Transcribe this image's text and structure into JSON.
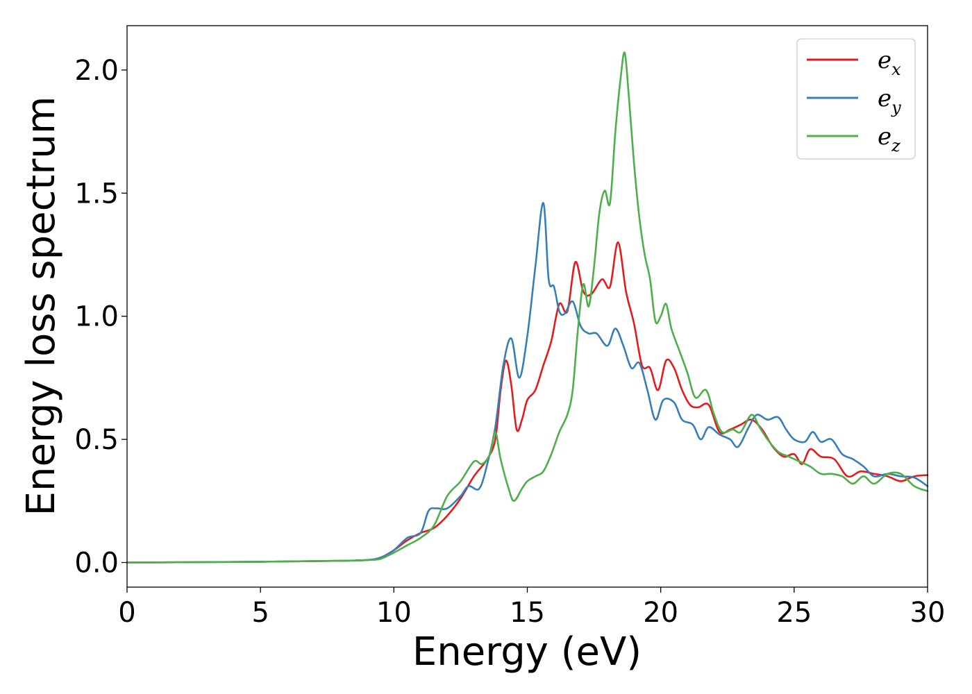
{
  "chart_data": {
    "type": "line",
    "xlabel": "Energy (eV)",
    "ylabel": "Energy loss spectrum",
    "xlim": [
      0,
      30
    ],
    "ylim": [
      -0.1,
      2.18
    ],
    "xticks": [
      0,
      5,
      10,
      15,
      20,
      25,
      30
    ],
    "xtick_labels": [
      "0",
      "5",
      "10",
      "15",
      "20",
      "25",
      "30"
    ],
    "yticks": [
      0.0,
      0.5,
      1.0,
      1.5,
      2.0
    ],
    "ytick_labels": [
      "0.0",
      "0.5",
      "1.0",
      "1.5",
      "2.0"
    ],
    "grid": false,
    "legend_position": "top-right",
    "series": [
      {
        "name": "e_x",
        "label_main": "e",
        "label_sub": "x",
        "color": "#e41a1c",
        "points": [
          [
            0,
            0.0
          ],
          [
            5,
            0.003
          ],
          [
            8,
            0.007
          ],
          [
            9,
            0.01
          ],
          [
            9.5,
            0.02
          ],
          [
            10,
            0.05
          ],
          [
            10.5,
            0.09
          ],
          [
            11,
            0.12
          ],
          [
            11.5,
            0.14
          ],
          [
            12,
            0.19
          ],
          [
            12.5,
            0.26
          ],
          [
            13,
            0.35
          ],
          [
            13.5,
            0.42
          ],
          [
            13.8,
            0.5
          ],
          [
            14,
            0.7
          ],
          [
            14.2,
            0.82
          ],
          [
            14.4,
            0.72
          ],
          [
            14.6,
            0.54
          ],
          [
            14.8,
            0.58
          ],
          [
            15,
            0.66
          ],
          [
            15.3,
            0.7
          ],
          [
            15.6,
            0.8
          ],
          [
            15.9,
            0.9
          ],
          [
            16.2,
            1.05
          ],
          [
            16.5,
            1.02
          ],
          [
            16.8,
            1.22
          ],
          [
            17.1,
            1.1
          ],
          [
            17.4,
            1.09
          ],
          [
            17.8,
            1.15
          ],
          [
            18.1,
            1.12
          ],
          [
            18.4,
            1.3
          ],
          [
            18.7,
            1.1
          ],
          [
            19,
            0.97
          ],
          [
            19.3,
            0.8
          ],
          [
            19.6,
            0.79
          ],
          [
            19.9,
            0.7
          ],
          [
            20.2,
            0.82
          ],
          [
            20.5,
            0.79
          ],
          [
            20.8,
            0.7
          ],
          [
            21.1,
            0.64
          ],
          [
            21.4,
            0.63
          ],
          [
            21.8,
            0.64
          ],
          [
            22.2,
            0.53
          ],
          [
            22.6,
            0.54
          ],
          [
            23,
            0.56
          ],
          [
            23.4,
            0.58
          ],
          [
            23.8,
            0.54
          ],
          [
            24.2,
            0.47
          ],
          [
            24.6,
            0.43
          ],
          [
            25,
            0.44
          ],
          [
            25.3,
            0.4
          ],
          [
            25.6,
            0.46
          ],
          [
            26,
            0.43
          ],
          [
            26.5,
            0.42
          ],
          [
            27,
            0.35
          ],
          [
            27.5,
            0.37
          ],
          [
            28,
            0.36
          ],
          [
            28.5,
            0.35
          ],
          [
            29,
            0.33
          ],
          [
            29.5,
            0.35
          ],
          [
            30,
            0.355
          ]
        ]
      },
      {
        "name": "e_y",
        "label_main": "e",
        "label_sub": "y",
        "color": "#377eb8",
        "points": [
          [
            0,
            0.0
          ],
          [
            5,
            0.003
          ],
          [
            8,
            0.007
          ],
          [
            9,
            0.01
          ],
          [
            9.5,
            0.02
          ],
          [
            10,
            0.05
          ],
          [
            10.5,
            0.1
          ],
          [
            11,
            0.12
          ],
          [
            11.3,
            0.21
          ],
          [
            11.6,
            0.22
          ],
          [
            12,
            0.22
          ],
          [
            12.5,
            0.27
          ],
          [
            12.8,
            0.31
          ],
          [
            13.2,
            0.3
          ],
          [
            13.5,
            0.4
          ],
          [
            13.8,
            0.55
          ],
          [
            14.1,
            0.8
          ],
          [
            14.4,
            0.91
          ],
          [
            14.7,
            0.75
          ],
          [
            15,
            0.92
          ],
          [
            15.3,
            1.2
          ],
          [
            15.6,
            1.46
          ],
          [
            15.8,
            1.15
          ],
          [
            16,
            1.12
          ],
          [
            16.2,
            1.02
          ],
          [
            16.4,
            1.01
          ],
          [
            16.7,
            1.06
          ],
          [
            17,
            0.96
          ],
          [
            17.3,
            0.93
          ],
          [
            17.6,
            0.93
          ],
          [
            18,
            0.88
          ],
          [
            18.3,
            0.95
          ],
          [
            18.6,
            0.88
          ],
          [
            18.9,
            0.79
          ],
          [
            19.2,
            0.81
          ],
          [
            19.5,
            0.7
          ],
          [
            19.8,
            0.58
          ],
          [
            20.1,
            0.66
          ],
          [
            20.5,
            0.65
          ],
          [
            20.8,
            0.58
          ],
          [
            21.2,
            0.56
          ],
          [
            21.5,
            0.5
          ],
          [
            21.8,
            0.55
          ],
          [
            22.2,
            0.52
          ],
          [
            22.6,
            0.5
          ],
          [
            22.9,
            0.47
          ],
          [
            23.3,
            0.55
          ],
          [
            23.6,
            0.6
          ],
          [
            24,
            0.58
          ],
          [
            24.4,
            0.59
          ],
          [
            24.7,
            0.54
          ],
          [
            25,
            0.5
          ],
          [
            25.4,
            0.49
          ],
          [
            25.7,
            0.53
          ],
          [
            26,
            0.49
          ],
          [
            26.4,
            0.5
          ],
          [
            26.8,
            0.44
          ],
          [
            27.2,
            0.42
          ],
          [
            27.6,
            0.39
          ],
          [
            28,
            0.35
          ],
          [
            28.5,
            0.36
          ],
          [
            29,
            0.35
          ],
          [
            29.5,
            0.345
          ],
          [
            30,
            0.31
          ]
        ]
      },
      {
        "name": "e_z",
        "label_main": "e",
        "label_sub": "z",
        "color": "#4daf4a",
        "points": [
          [
            0,
            0.0
          ],
          [
            5,
            0.003
          ],
          [
            8,
            0.007
          ],
          [
            9,
            0.01
          ],
          [
            9.5,
            0.015
          ],
          [
            10,
            0.04
          ],
          [
            10.5,
            0.07
          ],
          [
            11,
            0.1
          ],
          [
            11.5,
            0.15
          ],
          [
            12,
            0.27
          ],
          [
            12.5,
            0.33
          ],
          [
            13,
            0.41
          ],
          [
            13.3,
            0.4
          ],
          [
            13.6,
            0.44
          ],
          [
            13.8,
            0.53
          ],
          [
            14,
            0.42
          ],
          [
            14.3,
            0.3
          ],
          [
            14.5,
            0.25
          ],
          [
            14.8,
            0.3
          ],
          [
            15,
            0.33
          ],
          [
            15.3,
            0.35
          ],
          [
            15.6,
            0.37
          ],
          [
            15.9,
            0.44
          ],
          [
            16.2,
            0.53
          ],
          [
            16.5,
            0.6
          ],
          [
            16.7,
            0.7
          ],
          [
            16.9,
            0.95
          ],
          [
            17.1,
            1.13
          ],
          [
            17.3,
            1.04
          ],
          [
            17.5,
            1.2
          ],
          [
            17.7,
            1.42
          ],
          [
            17.9,
            1.51
          ],
          [
            18.1,
            1.46
          ],
          [
            18.3,
            1.75
          ],
          [
            18.5,
            1.97
          ],
          [
            18.65,
            2.07
          ],
          [
            18.8,
            1.9
          ],
          [
            19,
            1.62
          ],
          [
            19.2,
            1.4
          ],
          [
            19.4,
            1.25
          ],
          [
            19.6,
            1.15
          ],
          [
            19.8,
            0.98
          ],
          [
            20,
            1.0
          ],
          [
            20.2,
            1.05
          ],
          [
            20.4,
            0.95
          ],
          [
            20.7,
            0.86
          ],
          [
            21,
            0.77
          ],
          [
            21.3,
            0.67
          ],
          [
            21.7,
            0.7
          ],
          [
            22,
            0.6
          ],
          [
            22.3,
            0.53
          ],
          [
            22.7,
            0.54
          ],
          [
            23,
            0.53
          ],
          [
            23.4,
            0.6
          ],
          [
            23.7,
            0.55
          ],
          [
            24,
            0.5
          ],
          [
            24.4,
            0.45
          ],
          [
            24.8,
            0.43
          ],
          [
            25.2,
            0.41
          ],
          [
            25.6,
            0.39
          ],
          [
            26,
            0.36
          ],
          [
            26.4,
            0.36
          ],
          [
            26.8,
            0.35
          ],
          [
            27.2,
            0.32
          ],
          [
            27.6,
            0.35
          ],
          [
            28,
            0.32
          ],
          [
            28.5,
            0.36
          ],
          [
            29,
            0.36
          ],
          [
            29.5,
            0.31
          ],
          [
            30,
            0.29
          ]
        ]
      }
    ]
  }
}
